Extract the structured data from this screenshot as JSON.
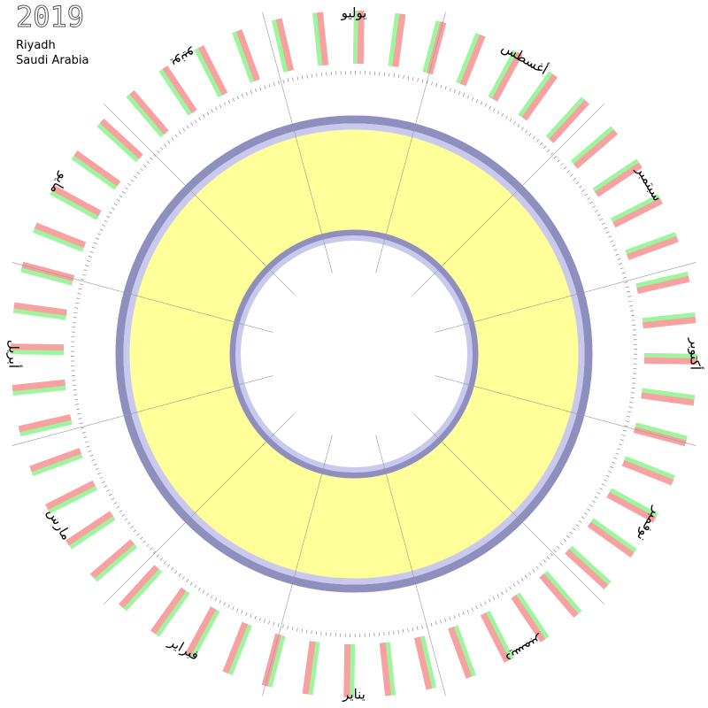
{
  "header": {
    "year": "2019",
    "city": "Riyadh",
    "country": "Saudi Arabia"
  },
  "months": [
    "يناير",
    "فبراير",
    "مارس",
    "أبريل",
    "مايو",
    "يونيو",
    "يوليو",
    "أغسطس",
    "سبتمبر",
    "أكتوبر",
    "نوفمبر",
    "ديسمبر"
  ]
}
